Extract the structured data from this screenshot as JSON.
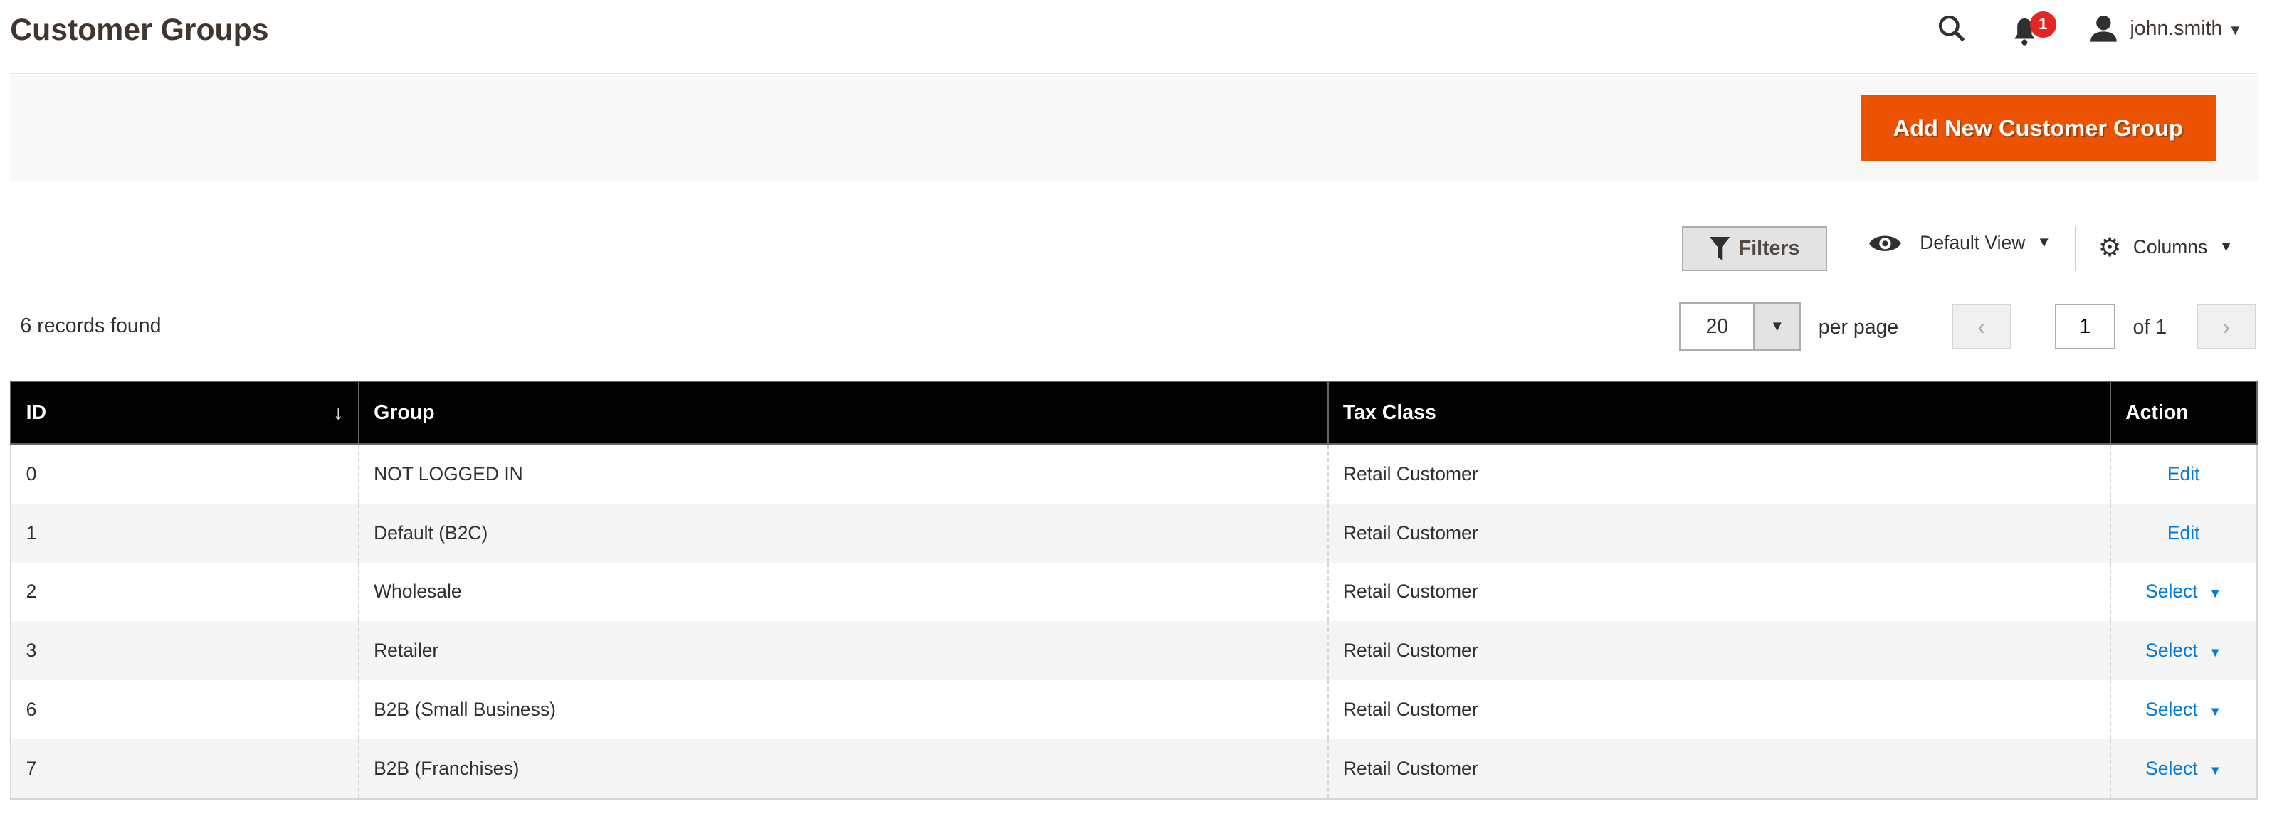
{
  "header": {
    "title": "Customer Groups",
    "notifications_count": "1",
    "username": "john.smith"
  },
  "actions": {
    "add_button": "Add New Customer Group"
  },
  "toolbar": {
    "filters": "Filters",
    "view": "Default View",
    "columns": "Columns"
  },
  "grid": {
    "records_found": "6 records found",
    "per_page_value": "20",
    "per_page_label": "per page",
    "page_value": "1",
    "page_of": "of 1"
  },
  "table": {
    "columns": [
      "ID",
      "Group",
      "Tax Class",
      "Action"
    ],
    "rows": [
      {
        "id": "0",
        "group": "NOT LOGGED IN",
        "tax": "Retail Customer",
        "action": "Edit"
      },
      {
        "id": "1",
        "group": "Default (B2C)",
        "tax": "Retail Customer",
        "action": "Edit"
      },
      {
        "id": "2",
        "group": "Wholesale",
        "tax": "Retail Customer",
        "action": "Select"
      },
      {
        "id": "3",
        "group": "Retailer",
        "tax": "Retail Customer",
        "action": "Select"
      },
      {
        "id": "6",
        "group": "B2B (Small Business)",
        "tax": "Retail Customer",
        "action": "Select"
      },
      {
        "id": "7",
        "group": "B2B (Franchises)",
        "tax": "Retail Customer",
        "action": "Select"
      }
    ]
  },
  "colors": {
    "accent": "#eb5202",
    "link": "#007bdb",
    "badge": "#e22626"
  }
}
